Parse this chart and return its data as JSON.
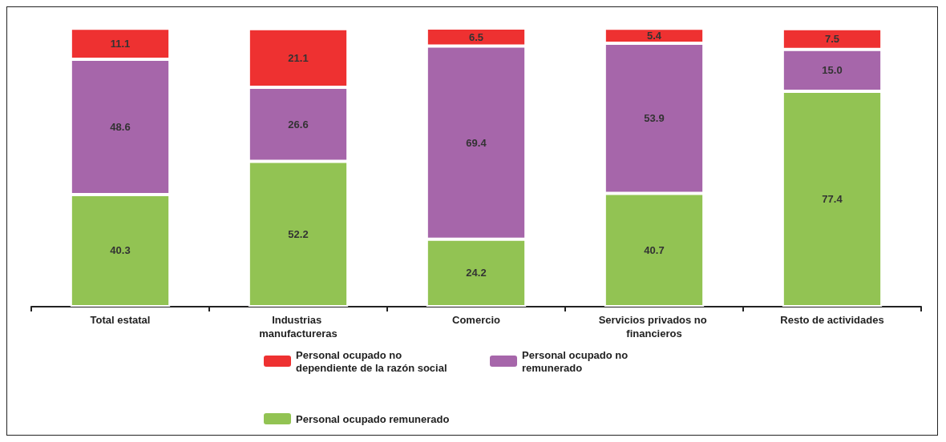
{
  "chart_data": {
    "type": "bar",
    "stacked": true,
    "legend": "bottom",
    "categories": [
      "Total estatal",
      "Industrias manufactureras",
      "Comercio",
      "Servicios privados no financieros",
      "Resto de actividades"
    ],
    "series": [
      {
        "name": "Personal ocupado remunerado",
        "color": "#92c353",
        "values": [
          40.3,
          52.2,
          24.2,
          40.7,
          77.4
        ],
        "value_labels": [
          "40.3",
          "52.2",
          "24.2",
          "40.7",
          "77.4"
        ]
      },
      {
        "name": "Personal ocupado no remunerado",
        "color": "#a666aa",
        "values": [
          48.6,
          26.6,
          69.4,
          53.9,
          15.0
        ],
        "value_labels": [
          "48.6",
          "26.6",
          "69.4",
          "53.9",
          "15.0"
        ]
      },
      {
        "name": "Personal ocupado no dependiente de la razón social",
        "color": "#ee3131",
        "values": [
          11.1,
          21.1,
          6.5,
          5.4,
          7.5
        ],
        "value_labels": [
          "11.1",
          "21.1",
          "6.5",
          "5.4",
          "7.5"
        ]
      }
    ]
  }
}
